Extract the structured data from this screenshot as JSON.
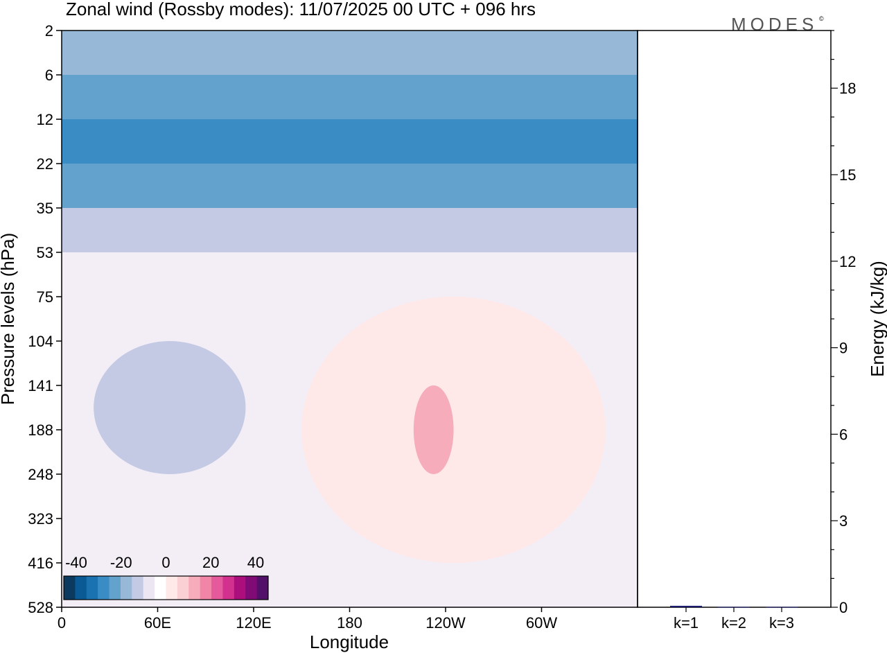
{
  "title": "Zonal wind (Rossby modes):  11/07/2025  00 UTC  + 096 hrs",
  "logo": "MODES",
  "logo_mark": "©",
  "chart_data": [
    {
      "type": "heatmap",
      "xlabel": "Longitude",
      "ylabel": "Pressure levels (hPa)",
      "x_ticks": [
        "0",
        "60E",
        "120E",
        "180",
        "120W",
        "60W"
      ],
      "x_tick_degrees": [
        0,
        60,
        120,
        180,
        240,
        300
      ],
      "x_range_degrees": [
        0,
        360
      ],
      "y_ticks": [
        "2",
        "6",
        "12",
        "22",
        "35",
        "53",
        "75",
        "104",
        "141",
        "188",
        "248",
        "323",
        "416",
        "528"
      ],
      "colorbar": {
        "ticks": [
          "-40",
          "-20",
          "0",
          "20",
          "40"
        ],
        "colors": [
          "#0c3a5e",
          "#0a5a96",
          "#1a72b0",
          "#3a8cc4",
          "#62a2cc",
          "#98b8d8",
          "#c4cae4",
          "#ece6f2",
          "#ffffff",
          "#ffe8e8",
          "#fad0d4",
          "#f6acba",
          "#f085a8",
          "#e55a9c",
          "#d2328e",
          "#ac0f7c",
          "#800a76",
          "#53106a"
        ]
      },
      "bands": [
        {
          "from": "2",
          "to": "6",
          "color": "#98b8d8"
        },
        {
          "from": "6",
          "to": "12",
          "color": "#62a2cc"
        },
        {
          "from": "12",
          "to": "22",
          "color": "#3a8cc4"
        },
        {
          "from": "22",
          "to": "35",
          "color": "#62a2cc"
        },
        {
          "from": "35",
          "to": "53",
          "color": "#c4cae4"
        },
        {
          "from": "53",
          "to": "528",
          "color": "#f3eef6"
        }
      ],
      "anomalies": [
        {
          "name": "negative-region-west-pacific",
          "color": "#c4cae4",
          "range_lon": [
            20,
            115
          ],
          "range_hPa": [
            "104",
            "248"
          ]
        },
        {
          "name": "positive-region-central",
          "color": "#ffe8e8",
          "range_lon": [
            150,
            340
          ],
          "range_hPa": [
            "75",
            "416"
          ]
        },
        {
          "name": "positive-core-120w",
          "color": "#f6acba",
          "range_lon": [
            220,
            245
          ],
          "range_hPa": [
            "141",
            "248"
          ]
        }
      ]
    },
    {
      "type": "bar",
      "ylabel": "Energy (kJ/kg)",
      "categories": [
        "k=1",
        "k=2",
        "k=3"
      ],
      "values": [
        0.05,
        0.01,
        0.01
      ],
      "ylim": [
        0,
        20
      ],
      "y_ticks": [
        "0",
        "3",
        "6",
        "9",
        "12",
        "15",
        "18"
      ],
      "bar_color": "#1a1a6e"
    }
  ]
}
